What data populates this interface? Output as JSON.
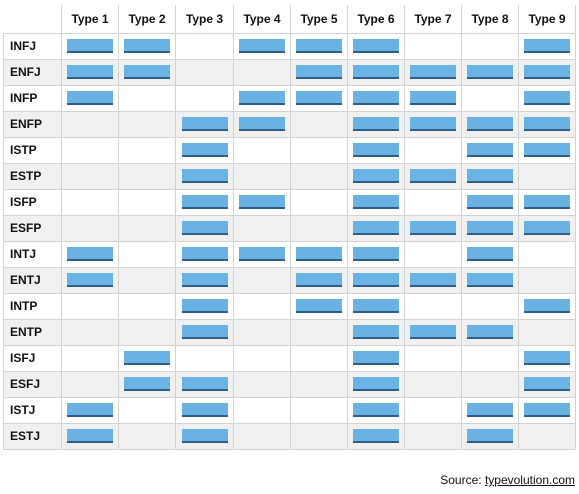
{
  "table": {
    "columns": [
      "Type 1",
      "Type 2",
      "Type 3",
      "Type 4",
      "Type 5",
      "Type 6",
      "Type 7",
      "Type 8",
      "Type 9"
    ],
    "rows": [
      {
        "label": "INFJ",
        "marks": [
          1,
          1,
          0,
          1,
          1,
          1,
          0,
          0,
          1
        ]
      },
      {
        "label": "ENFJ",
        "marks": [
          1,
          1,
          0,
          0,
          1,
          1,
          1,
          1,
          1
        ]
      },
      {
        "label": "INFP",
        "marks": [
          1,
          0,
          0,
          1,
          1,
          1,
          1,
          0,
          1
        ]
      },
      {
        "label": "ENFP",
        "marks": [
          0,
          0,
          1,
          1,
          0,
          1,
          1,
          1,
          1
        ]
      },
      {
        "label": "ISTP",
        "marks": [
          0,
          0,
          1,
          0,
          0,
          1,
          0,
          1,
          1
        ]
      },
      {
        "label": "ESTP",
        "marks": [
          0,
          0,
          1,
          0,
          0,
          1,
          1,
          1,
          0
        ]
      },
      {
        "label": "ISFP",
        "marks": [
          0,
          0,
          1,
          1,
          0,
          1,
          0,
          1,
          1
        ]
      },
      {
        "label": "ESFP",
        "marks": [
          0,
          0,
          1,
          0,
          0,
          1,
          1,
          1,
          1
        ]
      },
      {
        "label": "INTJ",
        "marks": [
          1,
          0,
          1,
          1,
          1,
          1,
          0,
          1,
          0
        ]
      },
      {
        "label": "ENTJ",
        "marks": [
          1,
          0,
          1,
          0,
          1,
          1,
          1,
          1,
          0
        ]
      },
      {
        "label": "INTP",
        "marks": [
          0,
          0,
          1,
          0,
          1,
          1,
          0,
          0,
          1
        ]
      },
      {
        "label": "ENTP",
        "marks": [
          0,
          0,
          1,
          0,
          0,
          1,
          1,
          1,
          0
        ]
      },
      {
        "label": "ISFJ",
        "marks": [
          0,
          1,
          0,
          0,
          0,
          1,
          0,
          0,
          1
        ]
      },
      {
        "label": "ESFJ",
        "marks": [
          0,
          1,
          1,
          0,
          0,
          1,
          0,
          0,
          1
        ]
      },
      {
        "label": "ISTJ",
        "marks": [
          1,
          0,
          1,
          0,
          0,
          1,
          0,
          1,
          1
        ]
      },
      {
        "label": "ESTJ",
        "marks": [
          1,
          0,
          1,
          0,
          0,
          1,
          0,
          1,
          0
        ]
      }
    ]
  },
  "source": {
    "prefix": "Source: ",
    "link_text": "typevolution.com"
  },
  "colors": {
    "bar_fill": "#6ab2e3",
    "bar_edge": "#2f5e86",
    "row_shade": "#f0f0f0",
    "grid_line": "#d3d3d3"
  }
}
